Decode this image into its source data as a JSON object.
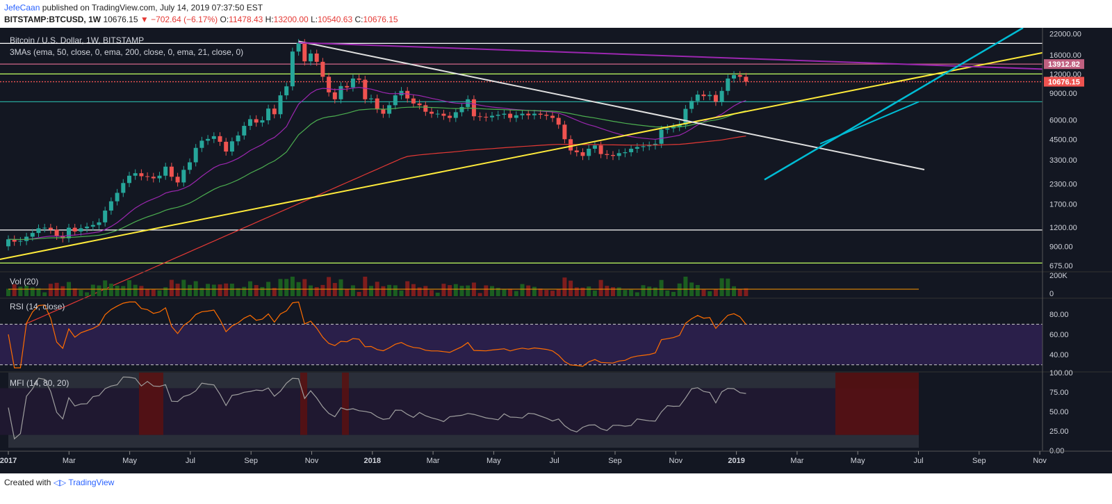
{
  "header": {
    "author": "JefeCaan",
    "published_text": "published on TradingView.com, July 14, 2019 07:37:50 EST",
    "symbol": "BITSTAMP:BTCUSD, 1W",
    "price": "10676.15",
    "change": "▼ −702.64 (−6.17%)",
    "o_label": "O:",
    "o": "11478.43",
    "h_label": "H:",
    "h": "13200.00",
    "l_label": "L:",
    "l": "10540.63",
    "c_label": "C:",
    "c": "10676.15"
  },
  "footer": {
    "created_with": "Created with",
    "brand": "TradingView"
  },
  "chart_data": {
    "type": "candlestick",
    "title": "Bitcoin / U.S. Dollar, 1W, BITSTAMP",
    "indicator_label": "3MAs (ema, 50, close, 0, ema, 200, close, 0, ema, 21, close, 0)",
    "y_scale": "log",
    "y_ticks": [
      "22000.00",
      "16000.00",
      "12000.00",
      "9000.00",
      "6000.00",
      "4500.00",
      "3300.00",
      "2300.00",
      "1700.00",
      "1200.00",
      "900.00",
      "675.00"
    ],
    "ylim": [
      620,
      24000
    ],
    "x_ticks": [
      "2017",
      "Mar",
      "May",
      "Jul",
      "Sep",
      "Nov",
      "2018",
      "Mar",
      "May",
      "Jul",
      "Sep",
      "Nov",
      "2019",
      "Mar",
      "May",
      "Jul",
      "Sep",
      "Nov"
    ],
    "colors": {
      "up": "#26a69a",
      "down": "#ef5350",
      "background": "#131722",
      "ema50": "#4caf50",
      "ema200": "#e53935",
      "ema21": "#9c27b0"
    },
    "price_labels": [
      {
        "text": "13912.82",
        "value": 13912.82,
        "color": "#c06080"
      },
      {
        "text": "10676.15",
        "value": 10676.15,
        "color": "#ef5350"
      }
    ],
    "closes": [
      1000,
      965,
      975,
      1040,
      1100,
      1180,
      1190,
      1155,
      1055,
      1015,
      1190,
      1125,
      1180,
      1210,
      1240,
      1290,
      1540,
      1770,
      2010,
      2330,
      2600,
      2700,
      2580,
      2560,
      2500,
      2600,
      2980,
      2560,
      2350,
      2840,
      3180,
      3950,
      4400,
      4520,
      4710,
      4330,
      3740,
      4360,
      4760,
      5500,
      6080,
      5780,
      5980,
      7130,
      6550,
      8700,
      9960,
      16800,
      19100,
      14500,
      16300,
      14400,
      11500,
      9100,
      8200,
      10000,
      9800,
      11200,
      11000,
      8200,
      8300,
      7100,
      6600,
      7500,
      8700,
      9300,
      8300,
      7700,
      7500,
      6800,
      6600,
      6600,
      6400,
      6200,
      6750,
      7300,
      8200,
      6350,
      6300,
      6250,
      6400,
      6500,
      6600,
      6200,
      6450,
      6600,
      6450,
      6600,
      6500,
      6400,
      6200,
      5600,
      4500,
      3800,
      3700,
      3500,
      3900,
      4100,
      3600,
      3550,
      3500,
      3650,
      3700,
      3900,
      4000,
      4050,
      4100,
      4200,
      5200,
      5300,
      5400,
      5600,
      7100,
      8000,
      8800,
      8600,
      8750,
      7900,
      9300,
      11200,
      11800,
      11500,
      10676
    ]
  },
  "vol": {
    "label": "Vol (20)",
    "ticks": [
      "200K",
      "0"
    ]
  },
  "rsi": {
    "label": "RSI (14, close)",
    "ticks": [
      "80.00",
      "60.00",
      "40.00"
    ]
  },
  "mfi": {
    "label": "MFI (14, 80, 20)",
    "ticks": [
      "100.00",
      "75.00",
      "50.00",
      "25.00",
      "0.00"
    ]
  }
}
